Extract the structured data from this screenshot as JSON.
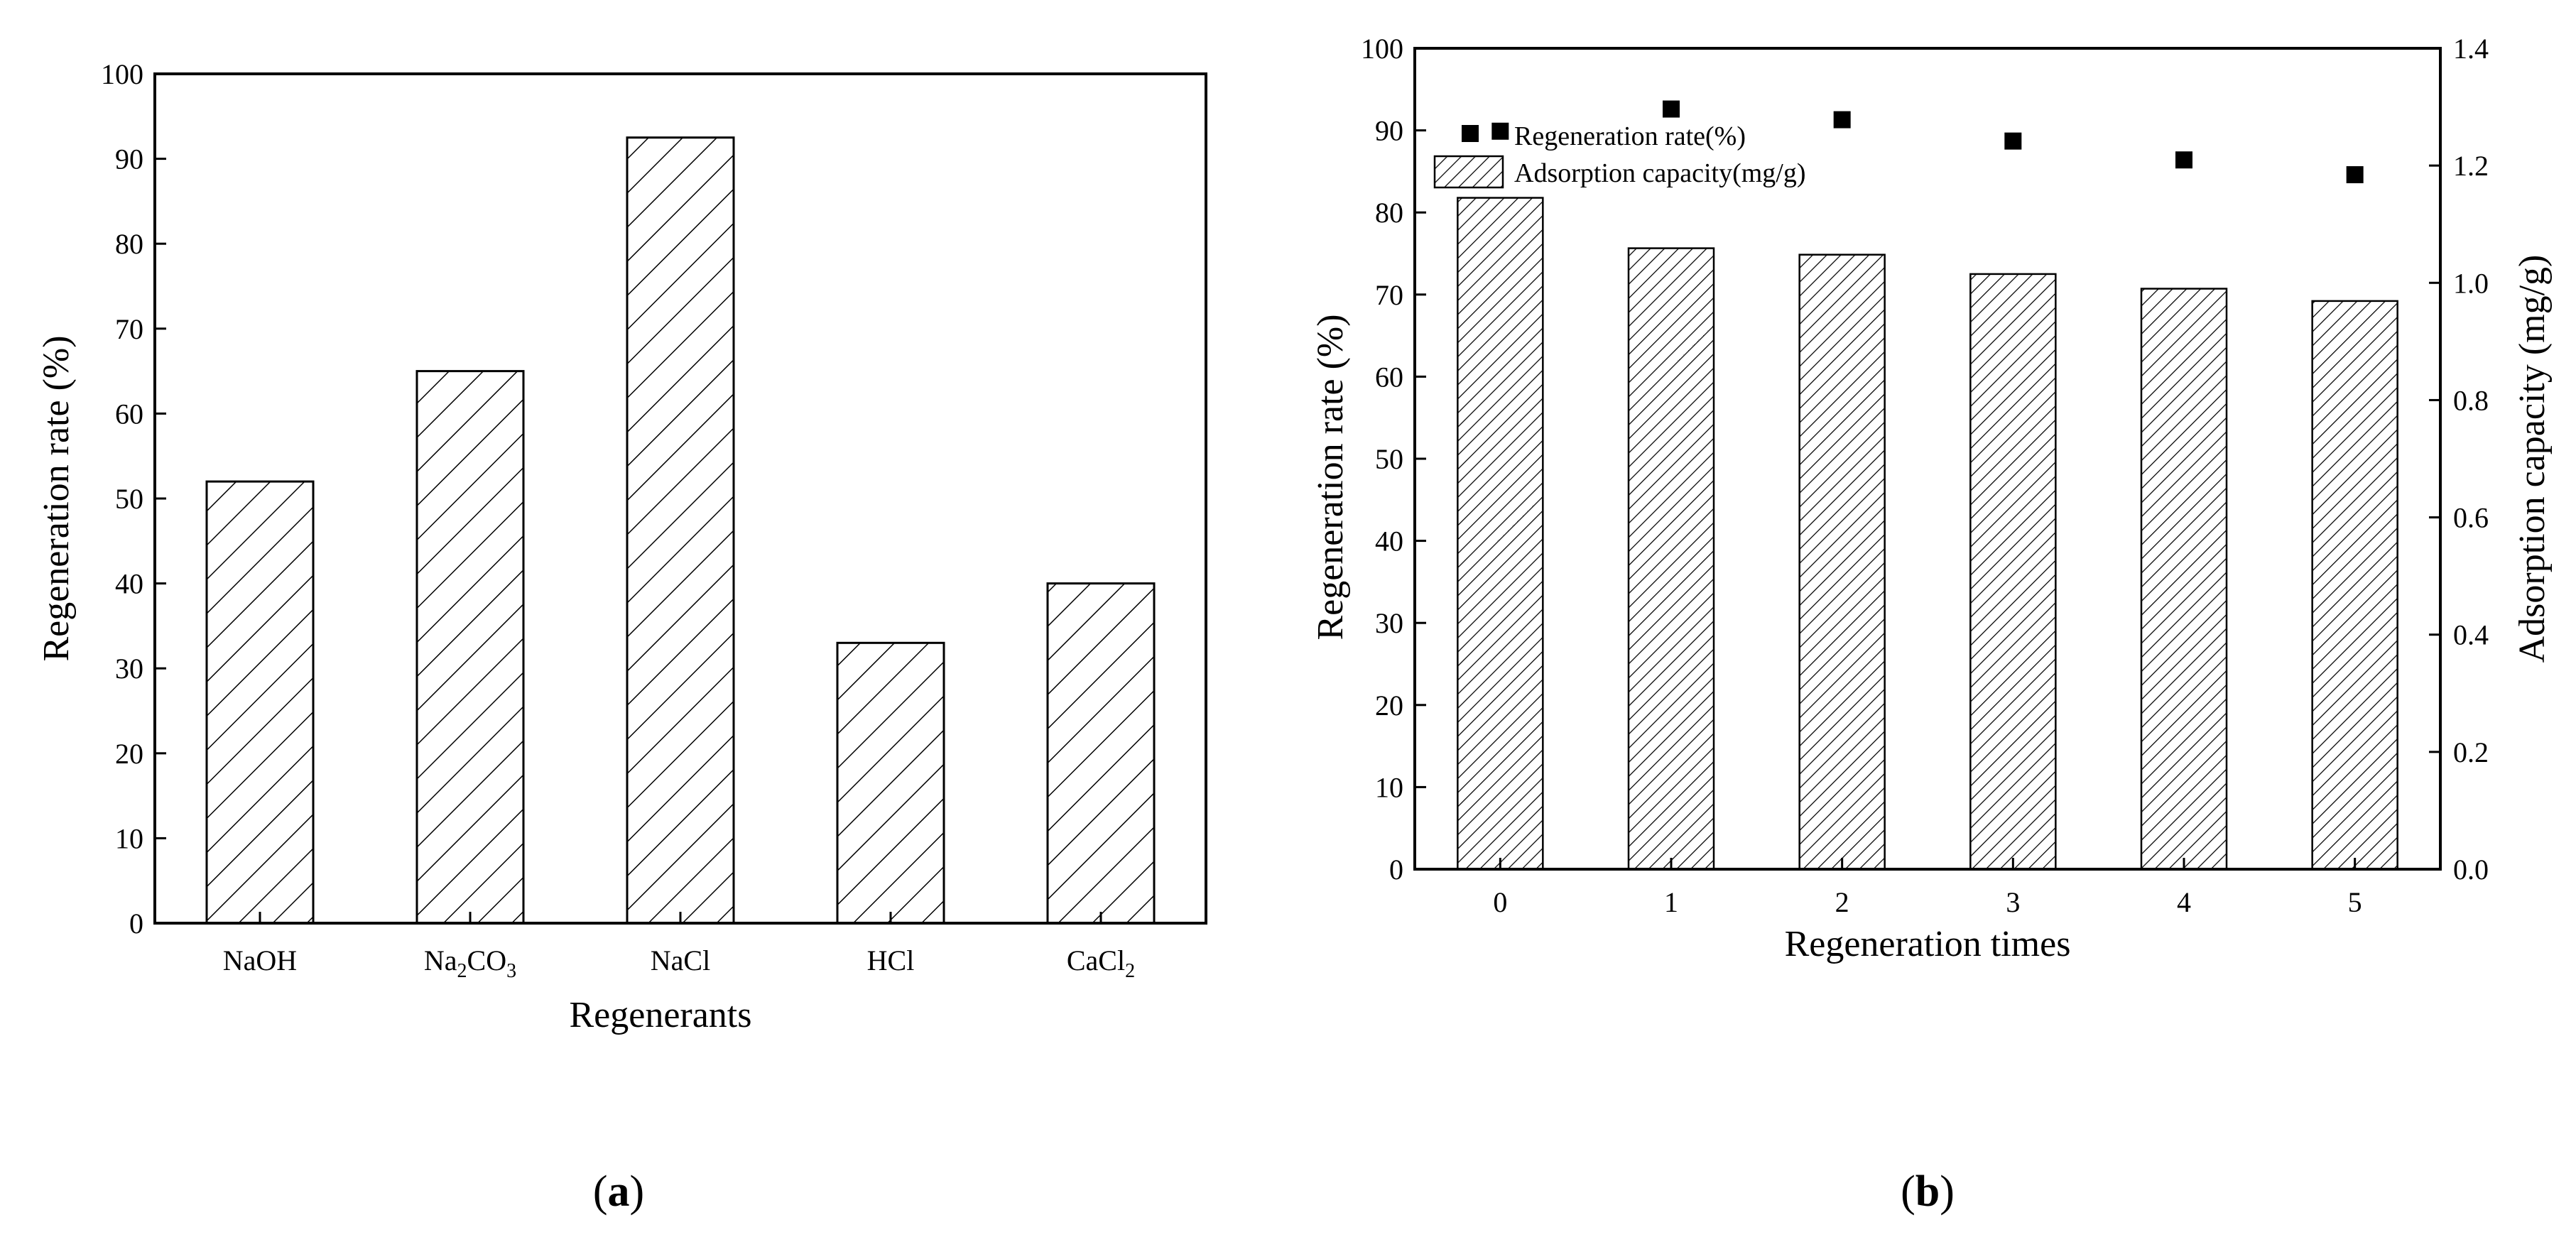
{
  "chart_data": [
    {
      "panel_label": "a",
      "type": "bar",
      "categories": [
        {
          "base": "NaOH",
          "sub": []
        },
        {
          "base": "Na",
          "sub": [
            [
              "2",
              "CO"
            ],
            [
              "3",
              ""
            ]
          ]
        },
        {
          "base": "NaCl",
          "sub": []
        },
        {
          "base": "HCl",
          "sub": []
        },
        {
          "base": "CaCl",
          "sub": [
            [
              "2",
              ""
            ]
          ]
        }
      ],
      "values": [
        52,
        65,
        92.5,
        33,
        40
      ],
      "xlabel": "Regenerants",
      "ylabel": "Regeneration rate (%)",
      "ylim": [
        0,
        100
      ],
      "yticks": [
        "0",
        "10",
        "20",
        "30",
        "40",
        "50",
        "60",
        "70",
        "80",
        "90",
        "100"
      ],
      "bar_fill": "hatched",
      "grid": false
    },
    {
      "panel_label": "b",
      "type": "bar",
      "categories": [
        "0",
        "1",
        "2",
        "3",
        "4",
        "5"
      ],
      "xlabel": "Regeneration times",
      "ylabel": "Regeneration rate (%)",
      "ylabel_right": "Adsorption capacity (mg/g)",
      "ylim": [
        0,
        100
      ],
      "ylim_right": [
        0,
        1.4
      ],
      "yticks": [
        "0",
        "10",
        "20",
        "30",
        "40",
        "50",
        "60",
        "70",
        "80",
        "90",
        "100"
      ],
      "yticks_right": [
        "0.0",
        "0.2",
        "0.4",
        "0.6",
        "0.8",
        "1.0",
        "1.2",
        "1.4"
      ],
      "series": [
        {
          "name": "Regeneration rate(%)",
          "kind": "scatter",
          "axis": "left",
          "values": [
            89.9,
            92.6,
            91.3,
            88.7,
            86.4,
            84.6
          ]
        },
        {
          "name": "Adsorption capacity(mg/g)",
          "kind": "bar",
          "axis": "right",
          "values": [
            1.145,
            1.059,
            1.048,
            1.015,
            0.99,
            0.969
          ]
        }
      ],
      "legend_position": "top-left",
      "grid": false
    }
  ]
}
